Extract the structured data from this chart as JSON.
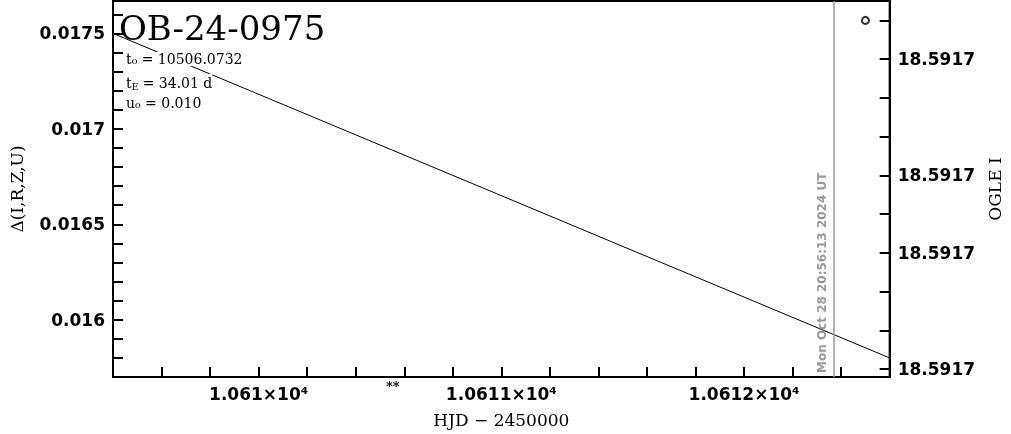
{
  "chart_data": {
    "type": "line",
    "title": "OB-24-0975",
    "xlabel": "HJD − 2450000",
    "ylabel": "Δ(I,R,Z,U)",
    "y2label": "OGLE I",
    "annotations": [
      "t₀ = 10506.0732",
      "t$_{E}$ = 34.01 d",
      "u₀ = 0.010",
      "**",
      "Mon Oct 28 20:56:13 2024 UT"
    ],
    "xlim": [
      10609.4,
      10612.6
    ],
    "xticks": [
      {
        "value": 10609.4,
        "label": null
      },
      {
        "value": 10609.6,
        "label": null
      },
      {
        "value": 10609.8,
        "label": null
      },
      {
        "value": 10610,
        "label": "1.061×10⁴"
      },
      {
        "value": 10610.2,
        "label": null
      },
      {
        "value": 10610.4,
        "label": null
      },
      {
        "value": 10610.6,
        "label": null
      },
      {
        "value": 10610.8,
        "label": null
      },
      {
        "value": 10611,
        "label": "1.0611×10⁴"
      },
      {
        "value": 10611.2,
        "label": null
      },
      {
        "value": 10611.4,
        "label": null
      },
      {
        "value": 10611.6,
        "label": null
      },
      {
        "value": 10611.8,
        "label": null
      },
      {
        "value": 10612,
        "label": "1.0612×10⁴"
      },
      {
        "value": 10612.2,
        "label": null
      },
      {
        "value": 10612.4,
        "label": null
      }
    ],
    "ylim": [
      0.0157,
      0.01767
    ],
    "yticks": [
      {
        "value": 0.0158,
        "label": null
      },
      {
        "value": 0.0159,
        "label": null
      },
      0.016,
      {
        "value": 0.0161,
        "label": null
      },
      {
        "value": 0.0162,
        "label": null
      },
      {
        "value": 0.0163,
        "label": null
      },
      {
        "value": 0.0164,
        "label": null
      },
      0.0165,
      {
        "value": 0.0166,
        "label": null
      },
      {
        "value": 0.0167,
        "label": null
      },
      {
        "value": 0.0168,
        "label": null
      },
      {
        "value": 0.0169,
        "label": null
      },
      0.017,
      {
        "value": 0.0171,
        "label": null
      },
      {
        "value": 0.0172,
        "label": null
      },
      {
        "value": 0.0173,
        "label": null
      },
      {
        "value": 0.0174,
        "label": null
      },
      0.0175,
      {
        "value": 0.0176,
        "label": null
      }
    ],
    "y2lim": [
      18.5916998,
      18.5917095
    ],
    "y2ticks": [
      {
        "value": 18.5917,
        "label": "18.5917"
      },
      {
        "value": 18.591701,
        "label": null
      },
      {
        "value": 18.591702,
        "label": null
      },
      {
        "value": 18.591703,
        "label": "18.5917"
      },
      {
        "value": 18.591704,
        "label": null
      },
      {
        "value": 18.591705,
        "label": "18.5917"
      },
      {
        "value": 18.591706,
        "label": null
      },
      {
        "value": 18.591707,
        "label": null
      },
      {
        "value": 18.591708,
        "label": "18.5917"
      },
      {
        "value": 18.591709,
        "label": null
      }
    ],
    "ref_lines": [
      {
        "axis": "x",
        "value": 10612.3724,
        "color": "#999999"
      }
    ],
    "series": [
      {
        "color": "#000000",
        "marker": "none",
        "x": [
          10609.4,
          10612.6
        ],
        "values": [
          0.0175,
          0.0158
        ]
      },
      {
        "type": "scatter",
        "axis": "y2",
        "color": "#000000",
        "marker": "circle",
        "x": [
          10612.5
        ],
        "values": [
          18.591709
        ]
      }
    ]
  }
}
